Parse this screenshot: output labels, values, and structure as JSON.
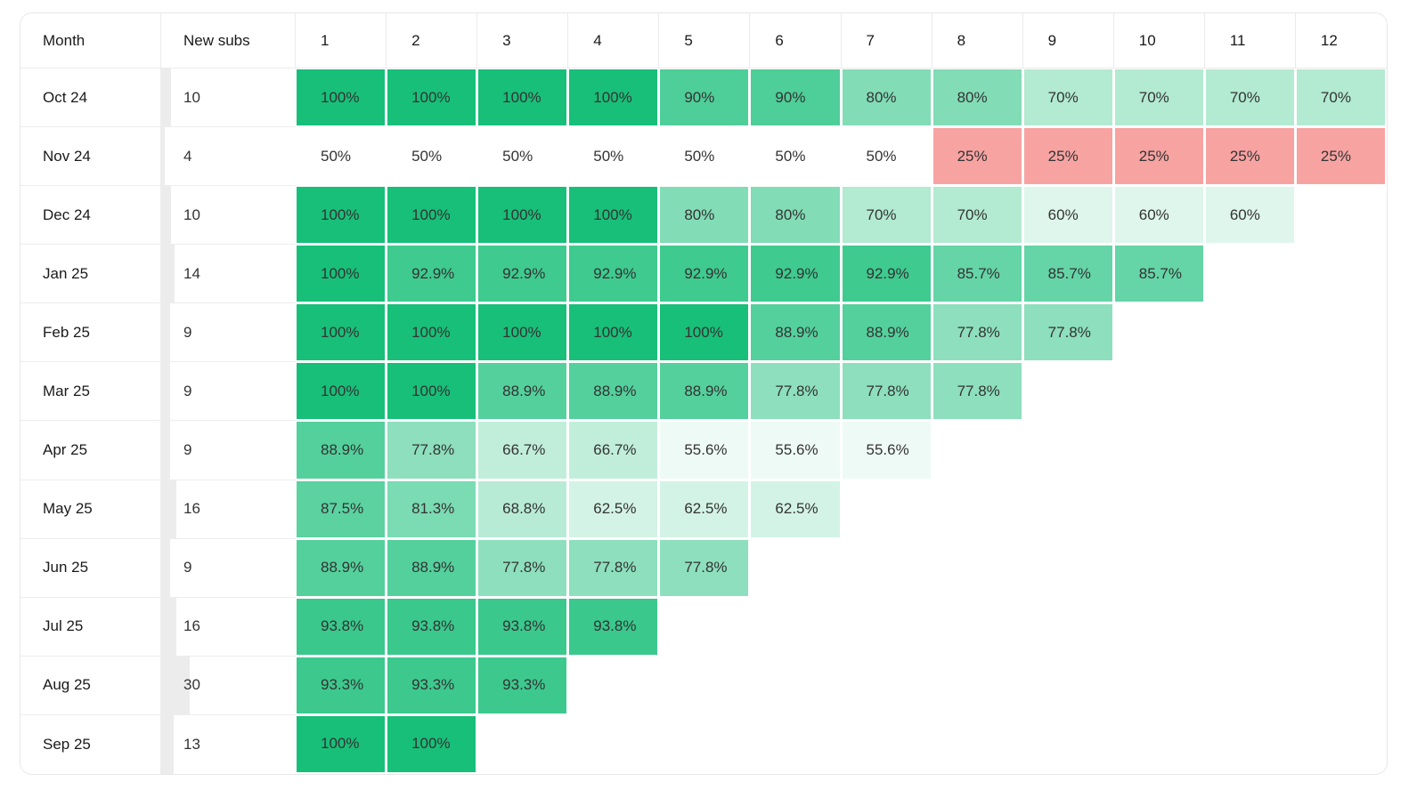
{
  "colors": {
    "green_max": "#18bf79",
    "red_min": "#ee4744",
    "neutral_mid": "#ffffff",
    "bar_gray": "#ececec",
    "grid_line": "#ebebeb",
    "cell_text": "#333333",
    "header_text": "#1a1a1a"
  },
  "chart_data": {
    "type": "heatmap",
    "columns": [
      "Month",
      "New subs",
      "1",
      "2",
      "3",
      "4",
      "5",
      "6",
      "7",
      "8",
      "9",
      "10",
      "11",
      "12"
    ],
    "color_scale": {
      "min_value": 0,
      "mid_value": 50,
      "max_value": 100,
      "min_color": "#ee4744",
      "mid_color": "#ffffff",
      "max_color": "#18bf79"
    },
    "cohorts": [
      {
        "month": "Oct 24",
        "new_subs": 10,
        "retention": [
          100,
          100,
          100,
          100,
          90,
          90,
          80,
          80,
          70,
          70,
          70,
          70
        ],
        "labels": [
          "100%",
          "100%",
          "100%",
          "100%",
          "90%",
          "90%",
          "80%",
          "80%",
          "70%",
          "70%",
          "70%",
          "70%"
        ]
      },
      {
        "month": "Nov 24",
        "new_subs": 4,
        "retention": [
          50,
          50,
          50,
          50,
          50,
          50,
          50,
          25,
          25,
          25,
          25,
          25
        ],
        "labels": [
          "50%",
          "50%",
          "50%",
          "50%",
          "50%",
          "50%",
          "50%",
          "25%",
          "25%",
          "25%",
          "25%",
          "25%"
        ]
      },
      {
        "month": "Dec 24",
        "new_subs": 10,
        "retention": [
          100,
          100,
          100,
          100,
          80,
          80,
          70,
          70,
          60,
          60,
          60
        ],
        "labels": [
          "100%",
          "100%",
          "100%",
          "100%",
          "80%",
          "80%",
          "70%",
          "70%",
          "60%",
          "60%",
          "60%"
        ]
      },
      {
        "month": "Jan 25",
        "new_subs": 14,
        "retention": [
          100,
          92.9,
          92.9,
          92.9,
          92.9,
          92.9,
          92.9,
          85.7,
          85.7,
          85.7
        ],
        "labels": [
          "100%",
          "92.9%",
          "92.9%",
          "92.9%",
          "92.9%",
          "92.9%",
          "92.9%",
          "85.7%",
          "85.7%",
          "85.7%"
        ]
      },
      {
        "month": "Feb 25",
        "new_subs": 9,
        "retention": [
          100,
          100,
          100,
          100,
          100,
          88.9,
          88.9,
          77.8,
          77.8
        ],
        "labels": [
          "100%",
          "100%",
          "100%",
          "100%",
          "100%",
          "88.9%",
          "88.9%",
          "77.8%",
          "77.8%"
        ]
      },
      {
        "month": "Mar 25",
        "new_subs": 9,
        "retention": [
          100,
          100,
          88.9,
          88.9,
          88.9,
          77.8,
          77.8,
          77.8
        ],
        "labels": [
          "100%",
          "100%",
          "88.9%",
          "88.9%",
          "88.9%",
          "77.8%",
          "77.8%",
          "77.8%"
        ]
      },
      {
        "month": "Apr 25",
        "new_subs": 9,
        "retention": [
          88.9,
          77.8,
          66.7,
          66.7,
          55.6,
          55.6,
          55.6
        ],
        "labels": [
          "88.9%",
          "77.8%",
          "66.7%",
          "66.7%",
          "55.6%",
          "55.6%",
          "55.6%"
        ]
      },
      {
        "month": "May 25",
        "new_subs": 16,
        "retention": [
          87.5,
          81.3,
          68.8,
          62.5,
          62.5,
          62.5
        ],
        "labels": [
          "87.5%",
          "81.3%",
          "68.8%",
          "62.5%",
          "62.5%",
          "62.5%"
        ]
      },
      {
        "month": "Jun 25",
        "new_subs": 9,
        "retention": [
          88.9,
          88.9,
          77.8,
          77.8,
          77.8
        ],
        "labels": [
          "88.9%",
          "88.9%",
          "77.8%",
          "77.8%",
          "77.8%"
        ]
      },
      {
        "month": "Jul 25",
        "new_subs": 16,
        "retention": [
          93.8,
          93.8,
          93.8,
          93.8
        ],
        "labels": [
          "93.8%",
          "93.8%",
          "93.8%",
          "93.8%"
        ]
      },
      {
        "month": "Aug 25",
        "new_subs": 30,
        "retention": [
          93.3,
          93.3,
          93.3
        ],
        "labels": [
          "93.3%",
          "93.3%",
          "93.3%"
        ]
      },
      {
        "month": "Sep 25",
        "new_subs": 13,
        "retention": [
          100,
          100
        ],
        "labels": [
          "100%",
          "100%"
        ]
      }
    ]
  }
}
